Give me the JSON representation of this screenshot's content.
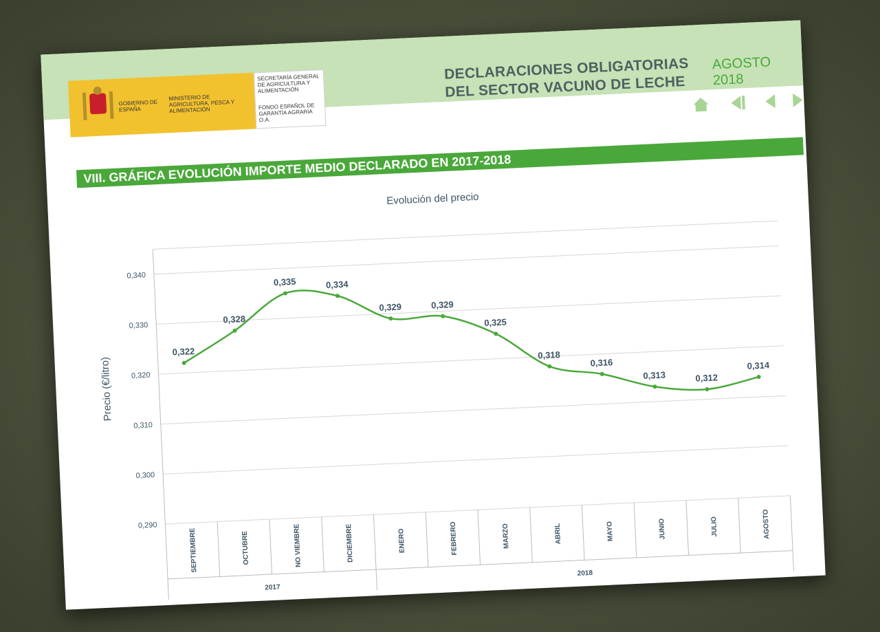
{
  "header": {
    "gov": "GOBIERNO DE ESPAÑA",
    "ministry": "MINISTERIO DE AGRICULTURA, PESCA Y ALIMENTACIÓN",
    "secretariat": "SECRETARÍA GENERAL DE AGRICULTURA Y ALIMENTACIÓN",
    "fund": "FONDO ESPAÑOL DE GARANTÍA AGRARIA O.A.",
    "title_line1": "DECLARACIONES OBLIGATORIAS",
    "title_line2": "DEL SECTOR VACUNO DE LECHE",
    "date": "AGOSTO 2018"
  },
  "section": "VIII. GRÁFICA EVOLUCIÓN IMPORTE MEDIO DECLARADO EN 2017-2018",
  "chart_data": {
    "type": "line",
    "title": "Evolución del precio",
    "y_label": "Precio (€/litro)",
    "categories": [
      "SEPTIEMBRE",
      "OCTUBRE",
      "NO VIEMBRE",
      "DICIEMBRE",
      "ENERO",
      "FEBRERO",
      "MARZO",
      "ABRIL",
      "MAYO",
      "JUNIO",
      "JULIO",
      "AGOSTO"
    ],
    "year_groups": [
      {
        "label": "2017",
        "last": "DICIEMBRE"
      },
      {
        "label": "2018",
        "last": "AGOSTO"
      }
    ],
    "series": [
      {
        "name": "Precio",
        "color": "#4aa83a",
        "values": [
          0.322,
          0.328,
          0.335,
          0.334,
          0.329,
          0.329,
          0.325,
          0.318,
          0.316,
          0.313,
          0.312,
          0.314
        ],
        "value_labels": [
          "0,322",
          "0,328",
          "0,335",
          "0,334",
          "0,329",
          "0,329",
          "0,325",
          "0,318",
          "0,316",
          "0,313",
          "0,312",
          "0,314"
        ]
      }
    ],
    "ylim": [
      0.29,
      0.345
    ],
    "yticks": [
      {
        "value": 0.29,
        "label": "0,290"
      },
      {
        "value": 0.3,
        "label": "0,300"
      },
      {
        "value": 0.31,
        "label": "0,310"
      },
      {
        "value": 0.32,
        "label": "0,320"
      },
      {
        "value": 0.33,
        "label": "0,330"
      },
      {
        "value": 0.34,
        "label": "0,340"
      }
    ],
    "grid": true
  }
}
